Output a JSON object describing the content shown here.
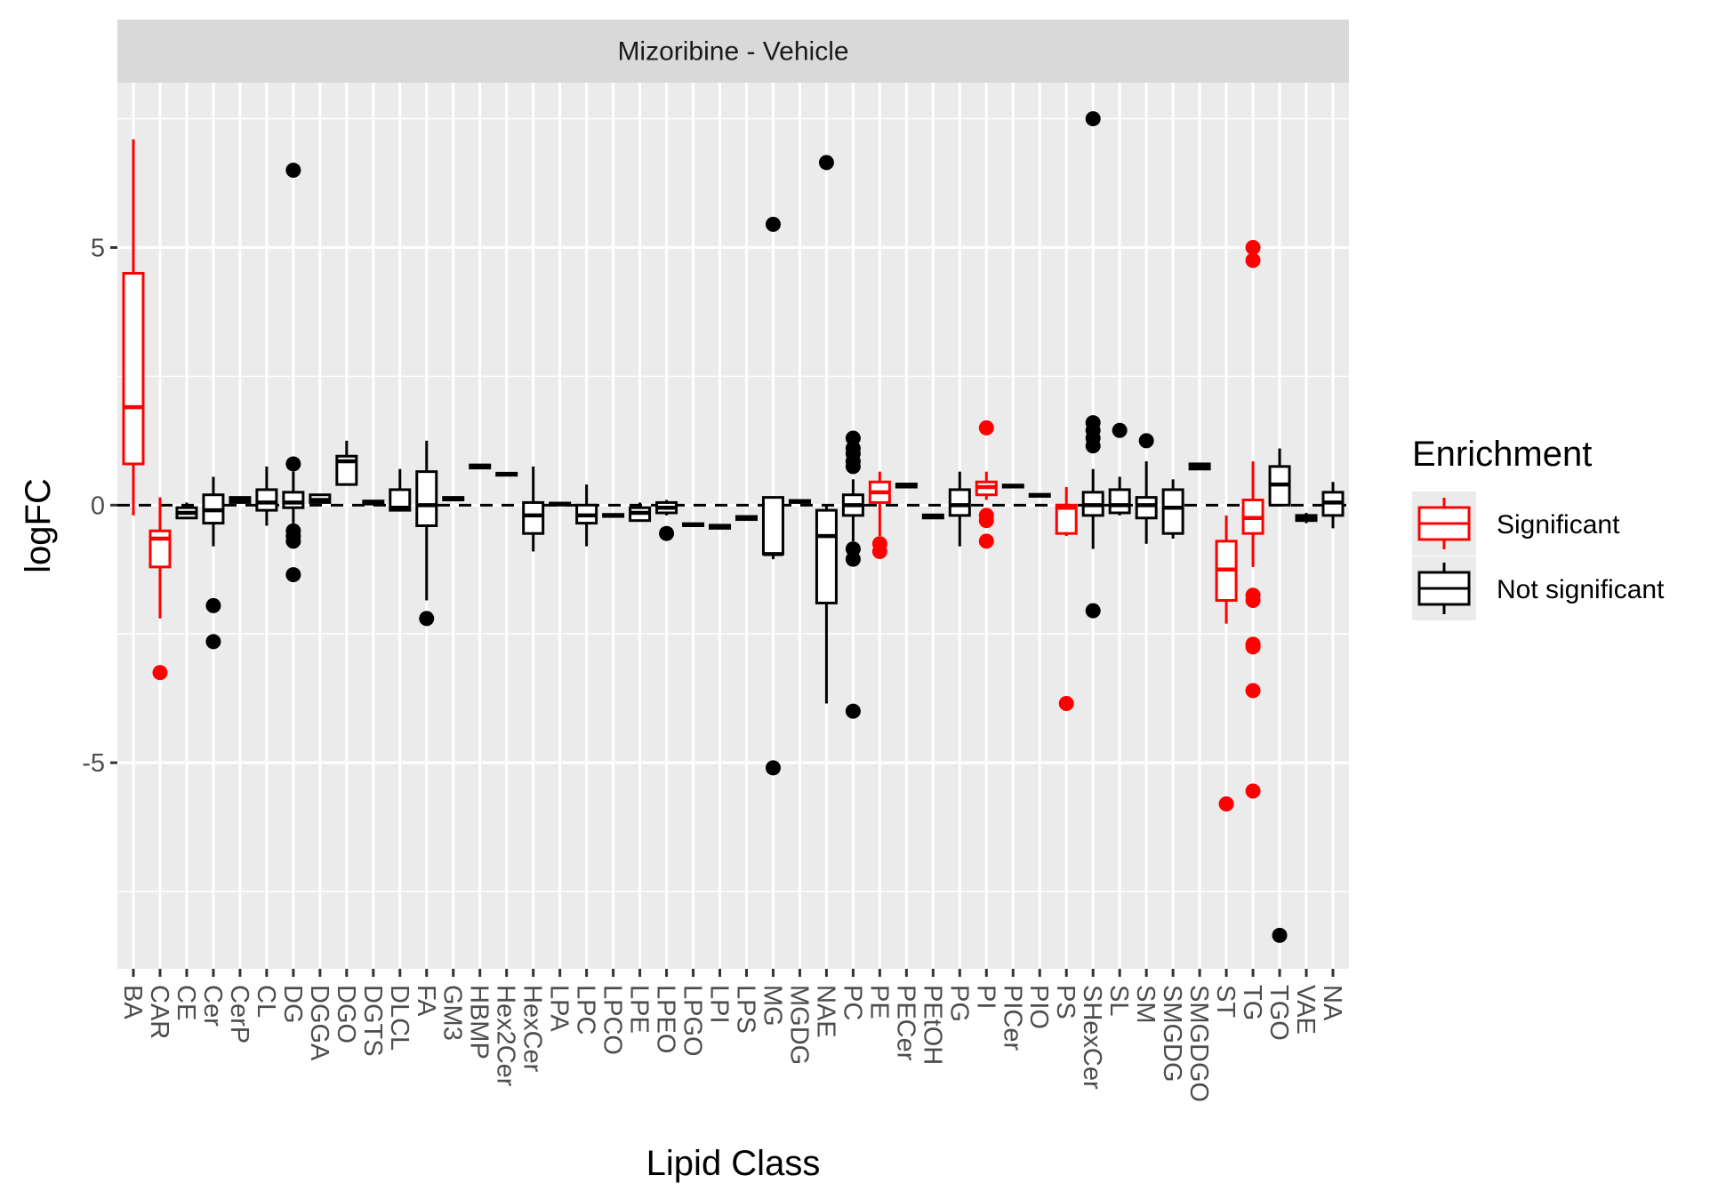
{
  "chart_data": {
    "type": "box",
    "facet_title": "Mizoribine - Vehicle",
    "xlabel": "Lipid Class",
    "ylabel": "logFC",
    "ylim": [
      -9,
      8.2
    ],
    "yticks": [
      -5,
      0,
      5
    ],
    "ytick_labels": [
      "-5",
      "0",
      "5"
    ],
    "reference_line": 0,
    "grid": true,
    "legend": {
      "title": "Enrichment",
      "position": "right",
      "entries": [
        {
          "label": "Significant",
          "color": "#ff0000"
        },
        {
          "label": "Not significant",
          "color": "#000000"
        }
      ]
    },
    "categories": [
      "BA",
      "CAR",
      "CE",
      "Cer",
      "CerP",
      "CL",
      "DG",
      "DGGA",
      "DGO",
      "DGTS",
      "DLCL",
      "FA",
      "GM3",
      "HBMP",
      "Hex2Cer",
      "HexCer",
      "LPA",
      "LPC",
      "LPCO",
      "LPE",
      "LPEO",
      "LPGO",
      "LPI",
      "LPS",
      "MG",
      "MGDG",
      "NAE",
      "PC",
      "PE",
      "PECer",
      "PEtOH",
      "PG",
      "PI",
      "PICer",
      "PIO",
      "PS",
      "SHexCer",
      "SL",
      "SM",
      "SMGDG",
      "SMGDGO",
      "ST",
      "TG",
      "TGO",
      "VAE",
      "NA"
    ],
    "boxes": [
      {
        "cat": "BA",
        "sig": true,
        "min": -0.2,
        "q1": 0.8,
        "med": 1.9,
        "q3": 4.5,
        "max": 7.1,
        "out": []
      },
      {
        "cat": "CAR",
        "sig": true,
        "min": -2.2,
        "q1": -1.2,
        "med": -0.65,
        "q3": -0.5,
        "max": 0.15,
        "out": [
          -3.25
        ]
      },
      {
        "cat": "CE",
        "sig": false,
        "min": -0.25,
        "q1": -0.25,
        "med": -0.15,
        "q3": -0.05,
        "max": 0.05,
        "out": []
      },
      {
        "cat": "Cer",
        "sig": false,
        "min": -0.8,
        "q1": -0.35,
        "med": -0.1,
        "q3": 0.2,
        "max": 0.55,
        "out": [
          -1.95,
          -2.65
        ]
      },
      {
        "cat": "CerP",
        "sig": false,
        "min": 0.05,
        "q1": 0.05,
        "med": 0.1,
        "q3": 0.15,
        "max": 0.15,
        "out": []
      },
      {
        "cat": "CL",
        "sig": false,
        "min": -0.4,
        "q1": -0.1,
        "med": 0.05,
        "q3": 0.3,
        "max": 0.75,
        "out": []
      },
      {
        "cat": "DG",
        "sig": false,
        "min": -0.35,
        "q1": -0.05,
        "med": 0.05,
        "q3": 0.25,
        "max": 0.65,
        "out": [
          0.8,
          -0.5,
          -0.6,
          -0.7,
          -1.35,
          6.5
        ]
      },
      {
        "cat": "DGGA",
        "sig": false,
        "min": 0.05,
        "q1": 0.05,
        "med": 0.1,
        "q3": 0.2,
        "max": 0.2,
        "out": []
      },
      {
        "cat": "DGO",
        "sig": false,
        "min": 0.4,
        "q1": 0.4,
        "med": 0.85,
        "q3": 0.95,
        "max": 1.25,
        "out": []
      },
      {
        "cat": "DGTS",
        "sig": false,
        "min": 0.02,
        "q1": 0.02,
        "med": 0.05,
        "q3": 0.08,
        "max": 0.08,
        "out": []
      },
      {
        "cat": "DLCL",
        "sig": false,
        "min": -0.1,
        "q1": -0.1,
        "med": -0.05,
        "q3": 0.3,
        "max": 0.7,
        "out": []
      },
      {
        "cat": "FA",
        "sig": false,
        "min": -1.85,
        "q1": -0.4,
        "med": 0.0,
        "q3": 0.65,
        "max": 1.25,
        "out": [
          -2.2
        ]
      },
      {
        "cat": "GM3",
        "sig": false,
        "min": 0.1,
        "q1": 0.1,
        "med": 0.12,
        "q3": 0.15,
        "max": 0.15,
        "out": []
      },
      {
        "cat": "HBMP",
        "sig": false,
        "min": 0.72,
        "q1": 0.72,
        "med": 0.75,
        "q3": 0.78,
        "max": 0.78,
        "out": []
      },
      {
        "cat": "Hex2Cer",
        "sig": false,
        "min": 0.58,
        "q1": 0.58,
        "med": 0.6,
        "q3": 0.62,
        "max": 0.62,
        "out": []
      },
      {
        "cat": "HexCer",
        "sig": false,
        "min": -0.9,
        "q1": -0.55,
        "med": -0.2,
        "q3": 0.05,
        "max": 0.75,
        "out": []
      },
      {
        "cat": "LPA",
        "sig": false,
        "min": 0.0,
        "q1": 0.0,
        "med": 0.02,
        "q3": 0.04,
        "max": 0.04,
        "out": []
      },
      {
        "cat": "LPC",
        "sig": false,
        "min": -0.8,
        "q1": -0.35,
        "med": -0.2,
        "q3": 0.0,
        "max": 0.4,
        "out": []
      },
      {
        "cat": "LPCO",
        "sig": false,
        "min": -0.22,
        "q1": -0.22,
        "med": -0.2,
        "q3": -0.18,
        "max": -0.18,
        "out": []
      },
      {
        "cat": "LPE",
        "sig": false,
        "min": -0.3,
        "q1": -0.3,
        "med": -0.15,
        "q3": -0.05,
        "max": 0.05,
        "out": []
      },
      {
        "cat": "LPEO",
        "sig": false,
        "min": -0.2,
        "q1": -0.15,
        "med": -0.05,
        "q3": 0.05,
        "max": 0.1,
        "out": [
          -0.55
        ]
      },
      {
        "cat": "LPGO",
        "sig": false,
        "min": -0.4,
        "q1": -0.4,
        "med": -0.38,
        "q3": -0.36,
        "max": -0.36,
        "out": []
      },
      {
        "cat": "LPI",
        "sig": false,
        "min": -0.45,
        "q1": -0.45,
        "med": -0.42,
        "q3": -0.39,
        "max": -0.39,
        "out": []
      },
      {
        "cat": "LPS",
        "sig": false,
        "min": -0.28,
        "q1": -0.28,
        "med": -0.25,
        "q3": -0.22,
        "max": -0.22,
        "out": []
      },
      {
        "cat": "MG",
        "sig": false,
        "min": -1.05,
        "q1": -0.95,
        "med": -0.95,
        "q3": 0.15,
        "max": 0.15,
        "out": [
          5.45,
          -5.1
        ]
      },
      {
        "cat": "MGDG",
        "sig": false,
        "min": 0.05,
        "q1": 0.05,
        "med": 0.07,
        "q3": 0.09,
        "max": 0.09,
        "out": []
      },
      {
        "cat": "NAE",
        "sig": false,
        "min": -3.85,
        "q1": -1.9,
        "med": -0.6,
        "q3": -0.1,
        "max": 0.0,
        "out": [
          6.65
        ]
      },
      {
        "cat": "PC",
        "sig": false,
        "min": -0.7,
        "q1": -0.2,
        "med": 0.0,
        "q3": 0.2,
        "max": 0.5,
        "out": [
          1.3,
          1.1,
          1.0,
          0.85,
          0.75,
          -0.85,
          -1.05,
          -4.0
        ]
      },
      {
        "cat": "PE",
        "sig": true,
        "min": -0.6,
        "q1": 0.05,
        "med": 0.25,
        "q3": 0.45,
        "max": 0.65,
        "out": [
          -0.75,
          -0.9
        ]
      },
      {
        "cat": "PECer",
        "sig": false,
        "min": 0.35,
        "q1": 0.35,
        "med": 0.38,
        "q3": 0.41,
        "max": 0.41,
        "out": []
      },
      {
        "cat": "PEtOH",
        "sig": false,
        "min": -0.25,
        "q1": -0.25,
        "med": -0.22,
        "q3": -0.19,
        "max": -0.19,
        "out": []
      },
      {
        "cat": "PG",
        "sig": false,
        "min": -0.8,
        "q1": -0.2,
        "med": 0.0,
        "q3": 0.3,
        "max": 0.65,
        "out": []
      },
      {
        "cat": "PI",
        "sig": true,
        "min": 0.1,
        "q1": 0.2,
        "med": 0.35,
        "q3": 0.45,
        "max": 0.65,
        "out": [
          1.5,
          -0.2,
          -0.3,
          -0.7
        ]
      },
      {
        "cat": "PICer",
        "sig": false,
        "min": 0.35,
        "q1": 0.35,
        "med": 0.37,
        "q3": 0.39,
        "max": 0.39,
        "out": []
      },
      {
        "cat": "PIO",
        "sig": false,
        "min": 0.17,
        "q1": 0.17,
        "med": 0.19,
        "q3": 0.21,
        "max": 0.21,
        "out": []
      },
      {
        "cat": "PS",
        "sig": true,
        "min": -0.6,
        "q1": -0.55,
        "med": -0.05,
        "q3": 0.0,
        "max": 0.35,
        "out": [
          -3.85
        ]
      },
      {
        "cat": "SHexCer",
        "sig": false,
        "min": -0.85,
        "q1": -0.2,
        "med": 0.0,
        "q3": 0.25,
        "max": 0.7,
        "out": [
          1.6,
          1.45,
          1.3,
          1.15,
          -2.05,
          7.5
        ]
      },
      {
        "cat": "SL",
        "sig": false,
        "min": -0.2,
        "q1": -0.15,
        "med": 0.0,
        "q3": 0.3,
        "max": 0.55,
        "out": [
          1.45
        ]
      },
      {
        "cat": "SM",
        "sig": false,
        "min": -0.75,
        "q1": -0.25,
        "med": 0.0,
        "q3": 0.15,
        "max": 0.85,
        "out": [
          1.25
        ]
      },
      {
        "cat": "SMGDG",
        "sig": false,
        "min": -0.65,
        "q1": -0.55,
        "med": -0.05,
        "q3": 0.3,
        "max": 0.5,
        "out": []
      },
      {
        "cat": "SMGDGO",
        "sig": false,
        "min": 0.7,
        "q1": 0.7,
        "med": 0.75,
        "q3": 0.8,
        "max": 0.8,
        "out": []
      },
      {
        "cat": "ST",
        "sig": true,
        "min": -2.3,
        "q1": -1.85,
        "med": -1.25,
        "q3": -0.7,
        "max": -0.2,
        "out": [
          -5.8
        ]
      },
      {
        "cat": "TG",
        "sig": true,
        "min": -1.2,
        "q1": -0.55,
        "med": -0.25,
        "q3": 0.1,
        "max": 0.85,
        "out": [
          5.0,
          4.75,
          -1.75,
          -1.85,
          -2.7,
          -2.75,
          -3.6,
          -5.55
        ]
      },
      {
        "cat": "TGO",
        "sig": false,
        "min": 0.0,
        "q1": 0.0,
        "med": 0.4,
        "q3": 0.75,
        "max": 1.1,
        "out": [
          -8.35
        ]
      },
      {
        "cat": "VAE",
        "sig": false,
        "min": -0.35,
        "q1": -0.3,
        "med": -0.25,
        "q3": -0.2,
        "max": -0.15,
        "out": []
      },
      {
        "cat": "NA",
        "sig": false,
        "min": -0.45,
        "q1": -0.2,
        "med": 0.05,
        "q3": 0.25,
        "max": 0.45,
        "out": []
      }
    ]
  }
}
